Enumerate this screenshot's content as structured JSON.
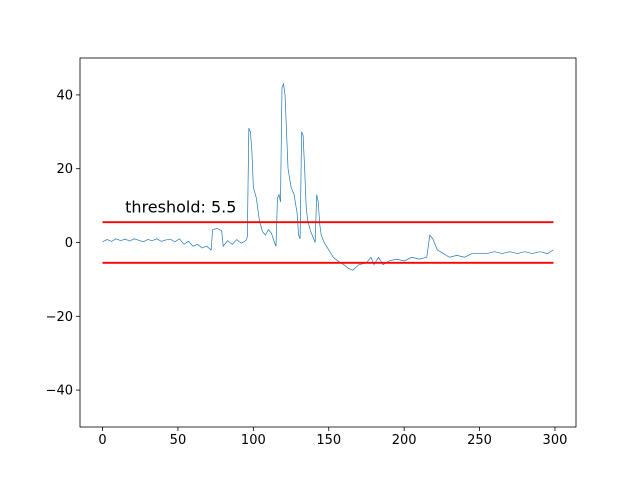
{
  "chart_data": {
    "type": "line",
    "x": [
      0,
      3,
      6,
      9,
      12,
      15,
      18,
      21,
      24,
      27,
      30,
      33,
      36,
      39,
      42,
      45,
      48,
      51,
      54,
      57,
      60,
      63,
      66,
      69,
      72,
      73,
      76,
      79,
      80,
      83,
      86,
      89,
      92,
      95,
      96,
      97,
      98,
      99,
      100,
      102,
      104,
      106,
      108,
      110,
      112,
      114,
      115,
      116,
      117,
      118,
      119,
      120,
      121,
      122,
      123,
      125,
      127,
      129,
      130,
      131,
      132,
      133,
      134,
      135,
      136,
      138,
      140,
      141,
      142,
      143,
      144,
      145,
      147,
      150,
      153,
      156,
      160,
      163,
      166,
      170,
      175,
      178,
      180,
      183,
      186,
      190,
      195,
      200,
      205,
      210,
      215,
      217,
      219,
      222,
      226,
      230,
      235,
      240,
      245,
      250,
      255,
      260,
      265,
      270,
      275,
      280,
      285,
      290,
      295,
      299
    ],
    "series": [
      {
        "color": "#1f77b4",
        "values": [
          0.2,
          0.8,
          0.3,
          1,
          0.5,
          0.9,
          0.4,
          1,
          0.6,
          0.2,
          0.8,
          0.5,
          1,
          0.3,
          0.7,
          0.9,
          0.2,
          1,
          -0.5,
          0.3,
          -1,
          -0.5,
          -1.5,
          -1,
          -2,
          3.5,
          3.8,
          3.2,
          -1,
          0.5,
          -0.5,
          0.8,
          -0.2,
          0.5,
          1.5,
          31,
          30,
          25,
          15,
          12,
          6,
          3,
          2,
          3.5,
          2.5,
          0,
          -1,
          12,
          13,
          11,
          42,
          43,
          40,
          30,
          20,
          15,
          13,
          8,
          2,
          1,
          30,
          29,
          20,
          10,
          6,
          3,
          1,
          0,
          13,
          11,
          5,
          2,
          0,
          -2,
          -4,
          -5,
          -6,
          -7,
          -7.5,
          -6,
          -5.5,
          -4,
          -6,
          -4,
          -6,
          -5,
          -4.5,
          -5,
          -4,
          -4.5,
          -4,
          2,
          1,
          -2,
          -3,
          -4,
          -3.5,
          -4,
          -3,
          -3,
          -3,
          -2.5,
          -3,
          -2.5,
          -3,
          -2.5,
          -3,
          -2.5,
          -3,
          -2
        ]
      }
    ],
    "hlines": [
      {
        "y": 5.5,
        "color": "#ff0000"
      },
      {
        "y": -5.5,
        "color": "#ff0000"
      }
    ],
    "annotation": {
      "text": "threshold: 5.5",
      "x": 15,
      "y": 9.5
    },
    "xlim": [
      -14.95,
      313.95
    ],
    "ylim": [
      -50,
      50
    ],
    "xticks": [
      0,
      50,
      100,
      150,
      200,
      250,
      300
    ],
    "yticks": [
      {
        "value": -40,
        "label": "−40"
      },
      {
        "value": -20,
        "label": "−20"
      },
      0,
      20,
      40
    ]
  }
}
